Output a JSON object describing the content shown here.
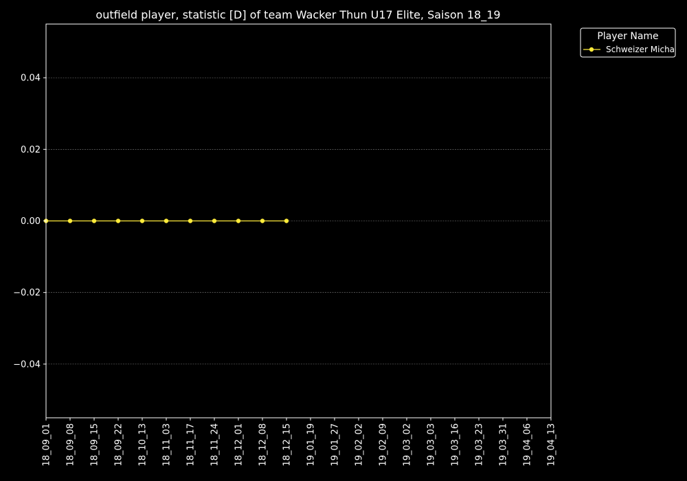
{
  "chart_data": {
    "type": "line",
    "title": "outfield player, statistic [D] of team Wacker Thun U17 Elite, Saison 18_19",
    "xlabel": "",
    "ylabel": "",
    "categories": [
      "18_09_01",
      "18_09_08",
      "18_09_15",
      "18_09_22",
      "18_10_13",
      "18_11_03",
      "18_11_17",
      "18_11_24",
      "18_12_01",
      "18_12_08",
      "18_12_15",
      "19_01_19",
      "19_01_27",
      "19_02_02",
      "19_02_09",
      "19_03_02",
      "19_03_03",
      "19_03_16",
      "19_03_23",
      "19_03_31",
      "19_04_06",
      "19_04_13"
    ],
    "yticks": [
      "−0.04",
      "−0.02",
      "0.00",
      "0.02",
      "0.04"
    ],
    "ytick_values": [
      -0.04,
      -0.02,
      0.0,
      0.02,
      0.04
    ],
    "ylim": [
      -0.055,
      0.055
    ],
    "grid": true,
    "legend": {
      "title": "Player Name",
      "placement": "outside-top-right"
    },
    "series": [
      {
        "name": "Schweizer Micha",
        "color": "#ffeb3b",
        "values": [
          0,
          0,
          0,
          0,
          0,
          0,
          0,
          0,
          0,
          0,
          0,
          null,
          null,
          null,
          null,
          null,
          null,
          null,
          null,
          null,
          null,
          null
        ]
      }
    ],
    "background": "#000000",
    "foreground": "#ffffff",
    "grid_color": "#808080"
  }
}
